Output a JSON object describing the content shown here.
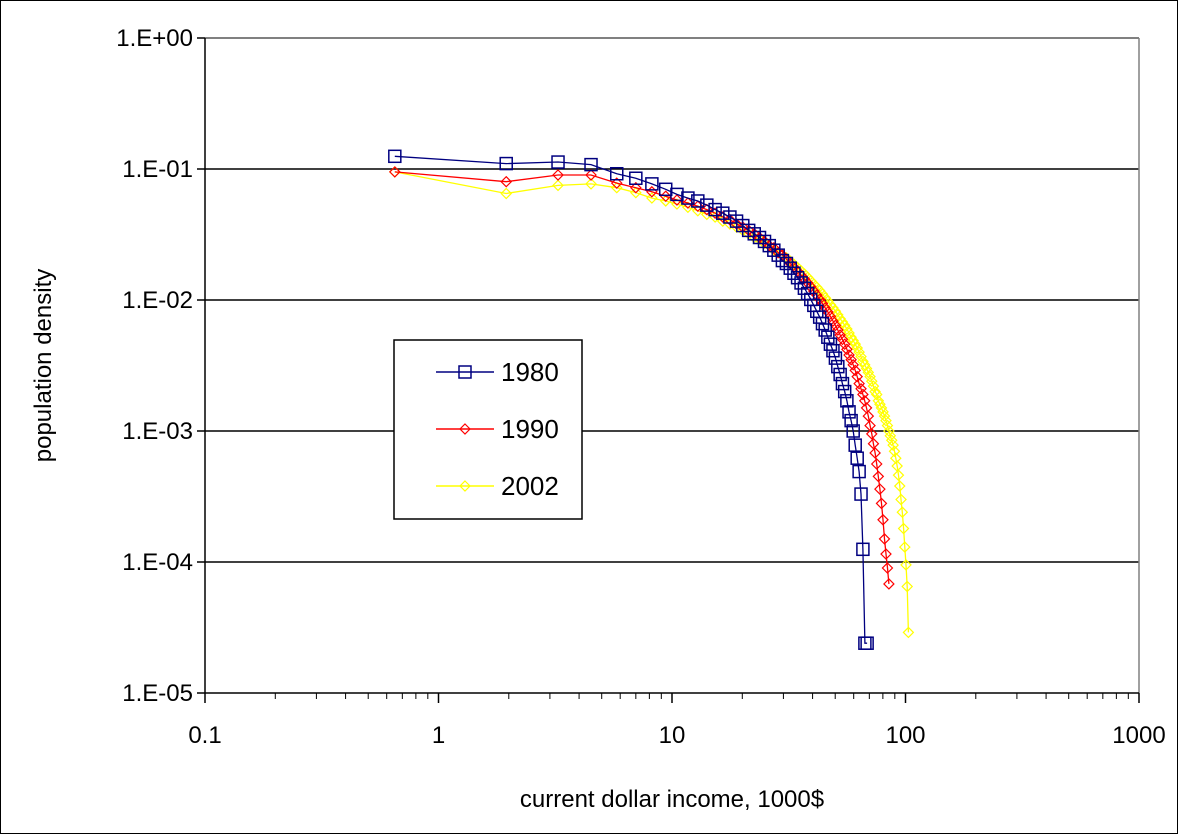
{
  "chart_data": {
    "type": "scatter",
    "xscale": "log",
    "yscale": "log",
    "xlabel": "current dollar income, 1000$",
    "ylabel": "population density",
    "xlim": [
      0.1,
      1000
    ],
    "ylim": [
      1e-05,
      1
    ],
    "x_ticks": [
      {
        "value": 0.1,
        "label": "0.1"
      },
      {
        "value": 1,
        "label": "1"
      },
      {
        "value": 10,
        "label": "10"
      },
      {
        "value": 100,
        "label": "100"
      },
      {
        "value": 1000,
        "label": "1000"
      }
    ],
    "y_ticks": [
      {
        "value": 1,
        "label": "1.E+00"
      },
      {
        "value": 0.1,
        "label": "1.E-01"
      },
      {
        "value": 0.01,
        "label": "1.E-02"
      },
      {
        "value": 0.001,
        "label": "1.E-03"
      },
      {
        "value": 0.0001,
        "label": "1.E-04"
      },
      {
        "value": 1e-05,
        "label": "1.E-05"
      }
    ],
    "grid": "horizontal major gridlines",
    "legend_position": "left-center",
    "series": [
      {
        "name": "1980",
        "color": "#000080",
        "marker": "square",
        "x": [
          0.65,
          1.95,
          3.25,
          4.5,
          5.8,
          7.0,
          8.2,
          9.4,
          10.5,
          11.7,
          12.9,
          14.1,
          15.3,
          16.5,
          17.7,
          18.9,
          20.1,
          21.3,
          22.5,
          23.7,
          24.9,
          26.1,
          27.3,
          28.5,
          29.7,
          30.9,
          32.1,
          33.3,
          34.5,
          35.7,
          36.9,
          38.1,
          39.3,
          40.5,
          41.7,
          42.9,
          44.1,
          45.3,
          46.5,
          47.7,
          48.9,
          50.1,
          51.3,
          52.5,
          53.7,
          54.9,
          56.1,
          57.3,
          58.5,
          59.7,
          60.9,
          62.1,
          63.3,
          64.5,
          65.7,
          67.0,
          68.5
        ],
        "y": [
          0.125,
          0.11,
          0.113,
          0.108,
          0.092,
          0.085,
          0.077,
          0.07,
          0.064,
          0.06,
          0.057,
          0.053,
          0.049,
          0.046,
          0.043,
          0.04,
          0.037,
          0.034,
          0.032,
          0.03,
          0.028,
          0.026,
          0.024,
          0.022,
          0.02,
          0.019,
          0.0175,
          0.016,
          0.0148,
          0.0135,
          0.0123,
          0.0112,
          0.0101,
          0.0091,
          0.0082,
          0.0074,
          0.0066,
          0.0059,
          0.0052,
          0.0046,
          0.0041,
          0.0036,
          0.0031,
          0.0027,
          0.0023,
          0.002,
          0.0017,
          0.0014,
          0.0012,
          0.001,
          0.00078,
          0.00062,
          0.00049,
          0.00033,
          0.000125,
          2.4e-05,
          2.4e-05
        ]
      },
      {
        "name": "1990",
        "color": "#ff0000",
        "marker": "diamond",
        "x": [
          0.65,
          1.95,
          3.25,
          4.5,
          5.8,
          7.0,
          8.2,
          9.4,
          10.5,
          11.7,
          12.9,
          14.1,
          15.3,
          16.5,
          17.7,
          18.9,
          20.1,
          21.3,
          22.5,
          23.7,
          24.9,
          26.1,
          27.3,
          28.5,
          29.7,
          30.9,
          32.1,
          33.3,
          34.5,
          35.7,
          36.9,
          38.1,
          39.3,
          40.5,
          41.7,
          42.9,
          44.1,
          45.3,
          46.5,
          47.7,
          48.9,
          50.1,
          51.3,
          52.5,
          53.7,
          54.9,
          56.1,
          57.3,
          58.5,
          59.7,
          60.9,
          62.1,
          63.3,
          64.5,
          65.7,
          66.9,
          68.1,
          69.3,
          70.5,
          71.7,
          72.9,
          74.1,
          75.3,
          76.5,
          77.7,
          78.9,
          80.1,
          81.3,
          82.5,
          83.7,
          84.9
        ],
        "y": [
          0.095,
          0.08,
          0.09,
          0.09,
          0.078,
          0.072,
          0.067,
          0.062,
          0.058,
          0.055,
          0.052,
          0.049,
          0.046,
          0.043,
          0.041,
          0.038,
          0.036,
          0.034,
          0.032,
          0.03,
          0.028,
          0.026,
          0.025,
          0.023,
          0.022,
          0.0205,
          0.019,
          0.0178,
          0.0166,
          0.0155,
          0.0145,
          0.0135,
          0.0126,
          0.0117,
          0.0109,
          0.0101,
          0.0094,
          0.0087,
          0.0081,
          0.0075,
          0.0069,
          0.0064,
          0.0059,
          0.0054,
          0.005,
          0.0046,
          0.0042,
          0.0038,
          0.0035,
          0.0032,
          0.0029,
          0.0026,
          0.0023,
          0.0021,
          0.0019,
          0.0017,
          0.0015,
          0.0013,
          0.0011,
          0.00095,
          0.0008,
          0.00068,
          0.00056,
          0.00045,
          0.00036,
          0.00028,
          0.00021,
          0.00015,
          0.000115,
          9e-05,
          6.8e-05
        ]
      },
      {
        "name": "2002",
        "color": "#ffff00",
        "marker": "diamond",
        "x": [
          0.65,
          1.95,
          3.25,
          4.5,
          5.8,
          7.0,
          8.2,
          9.4,
          10.5,
          11.7,
          12.9,
          14.1,
          15.3,
          16.5,
          17.7,
          18.9,
          20.1,
          21.3,
          22.5,
          23.7,
          24.9,
          26.1,
          27.3,
          28.5,
          29.7,
          30.9,
          32.1,
          33.3,
          34.5,
          35.7,
          36.9,
          38.1,
          39.3,
          40.5,
          41.7,
          42.9,
          44.1,
          45.3,
          46.5,
          47.7,
          48.9,
          50.1,
          51.3,
          52.5,
          53.7,
          54.9,
          56.1,
          57.3,
          58.5,
          59.7,
          60.9,
          62.1,
          63.3,
          64.5,
          65.7,
          66.9,
          68.1,
          69.3,
          70.5,
          71.7,
          72.9,
          74.1,
          75.3,
          76.5,
          77.7,
          78.9,
          80.1,
          81.3,
          82.5,
          83.7,
          84.9,
          86.1,
          87.3,
          88.5,
          89.7,
          90.9,
          92.1,
          93.3,
          94.5,
          95.7,
          96.9,
          98.1,
          99.3,
          100.5,
          101.7,
          102.9
        ],
        "y": [
          0.095,
          0.065,
          0.075,
          0.077,
          0.072,
          0.066,
          0.06,
          0.057,
          0.054,
          0.051,
          0.048,
          0.045,
          0.043,
          0.04,
          0.038,
          0.036,
          0.034,
          0.032,
          0.03,
          0.029,
          0.027,
          0.026,
          0.024,
          0.023,
          0.022,
          0.021,
          0.0198,
          0.0187,
          0.0177,
          0.0167,
          0.0158,
          0.0149,
          0.014,
          0.0132,
          0.0125,
          0.0118,
          0.0111,
          0.0104,
          0.0098,
          0.0092,
          0.0087,
          0.0082,
          0.0077,
          0.0072,
          0.0068,
          0.0064,
          0.006,
          0.0056,
          0.0052,
          0.0049,
          0.0046,
          0.0043,
          0.004,
          0.0037,
          0.0034,
          0.0032,
          0.003,
          0.0028,
          0.0026,
          0.0024,
          0.0022,
          0.002,
          0.0019,
          0.0017,
          0.0016,
          0.0015,
          0.0014,
          0.0013,
          0.0012,
          0.0011,
          0.001,
          0.00092,
          0.00085,
          0.00078,
          0.0007,
          0.00062,
          0.00054,
          0.00046,
          0.00038,
          0.0003,
          0.00024,
          0.00018,
          0.00013,
          9.5e-05,
          6.5e-05,
          2.9e-05
        ]
      }
    ]
  }
}
